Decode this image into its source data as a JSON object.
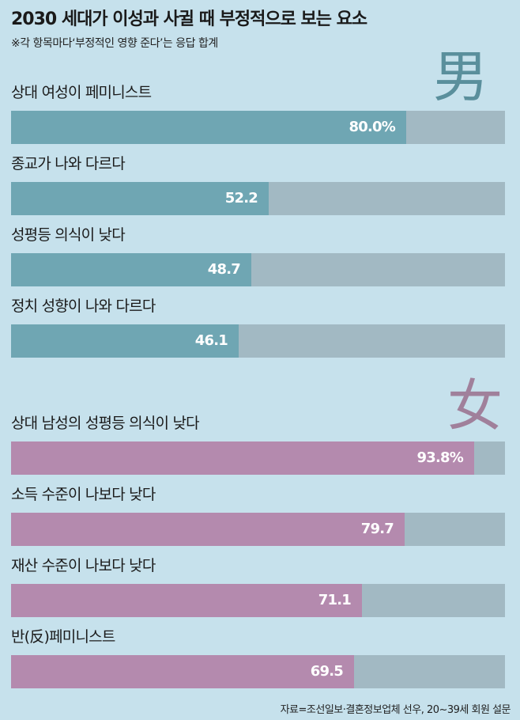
{
  "title": "2030 세대가 이성과 사귈 때 부정적으로 보는 요소",
  "subtitle": "※각 항목마다‘부정적인 영향 준다’는 응답 합계",
  "source": "자료=조선일보·결혼정보업체 선우, 20~39세 회원 설문",
  "colors": {
    "men_bar": "#6fa6b3",
    "women_bar": "#b48aae",
    "track": "#a2b9c3",
    "background": "#c6e1ec"
  },
  "chart_data": [
    {
      "type": "bar",
      "group_label": "男",
      "categories": [
        "상대 여성이 페미니스트",
        "종교가 나와 다르다",
        "성평등 의식이 낮다",
        "정치 성향이 나와 다르다"
      ],
      "values": [
        80.0,
        52.2,
        48.7,
        46.1
      ],
      "value_labels": [
        "80.0%",
        "52.2",
        "48.7",
        "46.1"
      ],
      "xlim": [
        0,
        100
      ],
      "unit": "%"
    },
    {
      "type": "bar",
      "group_label": "女",
      "categories": [
        "상대 남성의 성평등 의식이 낮다",
        "소득 수준이 나보다 낮다",
        "재산 수준이 나보다 낮다",
        "반(反)페미니스트"
      ],
      "values": [
        93.8,
        79.7,
        71.1,
        69.5
      ],
      "value_labels": [
        "93.8%",
        "79.7",
        "71.1",
        "69.5"
      ],
      "xlim": [
        0,
        100
      ],
      "unit": "%"
    }
  ]
}
